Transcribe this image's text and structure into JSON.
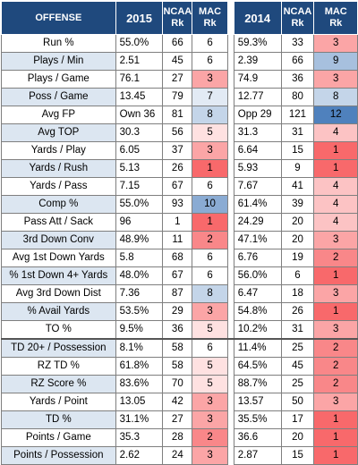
{
  "header": {
    "offense": "OFFENSE",
    "year_a": "2015",
    "ncaa_a": "NCAA",
    "rk_a": "Rk",
    "mac_a": "MAC",
    "rkm_a": "Rk",
    "year_b": "2014",
    "ncaa_b": "NCAA",
    "rk_b": "Rk",
    "mac_b": "MAC",
    "rkm_b": "Rk"
  },
  "colors": {
    "header_bg": "#1f497d",
    "alt_row_bg": "#dce6f1",
    "rank_good": "#4f81bd",
    "rank_bad": "#f8696b"
  },
  "rows": [
    {
      "label": "Run %",
      "v15": "55.0%",
      "n15": "66",
      "m15": "6",
      "v14": "59.3%",
      "n14": "33",
      "m14": "3"
    },
    {
      "label": "Plays / Min",
      "v15": "2.51",
      "n15": "45",
      "m15": "6",
      "v14": "2.39",
      "n14": "66",
      "m14": "9"
    },
    {
      "label": "Plays / Game",
      "v15": "76.1",
      "n15": "27",
      "m15": "3",
      "v14": "74.9",
      "n14": "36",
      "m14": "3"
    },
    {
      "label": "Poss / Game",
      "v15": "13.45",
      "n15": "79",
      "m15": "7",
      "v14": "12.77",
      "n14": "80",
      "m14": "8"
    },
    {
      "label": "Avg FP",
      "v15": "Own 36",
      "n15": "81",
      "m15": "8",
      "v14": "Opp 29",
      "n14": "121",
      "m14": "12"
    },
    {
      "label": "Avg TOP",
      "v15": "30.3",
      "n15": "56",
      "m15": "5",
      "v14": "31.3",
      "n14": "31",
      "m14": "4"
    },
    {
      "label": "Yards / Play",
      "v15": "6.05",
      "n15": "37",
      "m15": "3",
      "v14": "6.64",
      "n14": "15",
      "m14": "1"
    },
    {
      "label": "Yards / Rush",
      "v15": "5.13",
      "n15": "26",
      "m15": "1",
      "v14": "5.93",
      "n14": "9",
      "m14": "1"
    },
    {
      "label": "Yards / Pass",
      "v15": "7.15",
      "n15": "67",
      "m15": "6",
      "v14": "7.67",
      "n14": "41",
      "m14": "4"
    },
    {
      "label": "Comp %",
      "v15": "55.0%",
      "n15": "93",
      "m15": "10",
      "v14": "61.4%",
      "n14": "39",
      "m14": "4"
    },
    {
      "label": "Pass Att / Sack",
      "v15": "96",
      "n15": "1",
      "m15": "1",
      "v14": "24.29",
      "n14": "20",
      "m14": "4"
    },
    {
      "label": "3rd Down Conv",
      "v15": "48.9%",
      "n15": "11",
      "m15": "2",
      "v14": "47.1%",
      "n14": "20",
      "m14": "3"
    },
    {
      "label": "Avg 1st Down Yards",
      "v15": "5.8",
      "n15": "68",
      "m15": "6",
      "v14": "6.76",
      "n14": "19",
      "m14": "2"
    },
    {
      "label": "% 1st Down 4+ Yards",
      "v15": "48.0%",
      "n15": "67",
      "m15": "6",
      "v14": "56.0%",
      "n14": "6",
      "m14": "1"
    },
    {
      "label": "Avg 3rd Down Dist",
      "v15": "7.36",
      "n15": "87",
      "m15": "8",
      "v14": "6.47",
      "n14": "18",
      "m14": "3"
    },
    {
      "label": "% Avail Yards",
      "v15": "53.5%",
      "n15": "29",
      "m15": "3",
      "v14": "54.8%",
      "n14": "26",
      "m14": "1"
    },
    {
      "label": "TO %",
      "v15": "9.5%",
      "n15": "36",
      "m15": "5",
      "v14": "10.2%",
      "n14": "31",
      "m14": "3"
    },
    {
      "label": "TD 20+ / Possession",
      "v15": "8.1%",
      "n15": "58",
      "m15": "6",
      "v14": "11.4%",
      "n14": "25",
      "m14": "2"
    },
    {
      "label": "RZ TD %",
      "v15": "61.8%",
      "n15": "58",
      "m15": "5",
      "v14": "64.5%",
      "n14": "45",
      "m14": "2"
    },
    {
      "label": "RZ Score %",
      "v15": "83.6%",
      "n15": "70",
      "m15": "5",
      "v14": "88.7%",
      "n14": "25",
      "m14": "2"
    },
    {
      "label": "Yards / Point",
      "v15": "13.05",
      "n15": "42",
      "m15": "3",
      "v14": "13.57",
      "n14": "50",
      "m14": "3"
    },
    {
      "label": "TD %",
      "v15": "31.1%",
      "n15": "27",
      "m15": "3",
      "v14": "35.5%",
      "n14": "17",
      "m14": "1"
    },
    {
      "label": "Points / Game",
      "v15": "35.3",
      "n15": "28",
      "m15": "2",
      "v14": "36.6",
      "n14": "20",
      "m14": "1"
    },
    {
      "label": "Points / Possession",
      "v15": "2.62",
      "n15": "24",
      "m15": "3",
      "v14": "2.87",
      "n14": "15",
      "m14": "1"
    }
  ]
}
